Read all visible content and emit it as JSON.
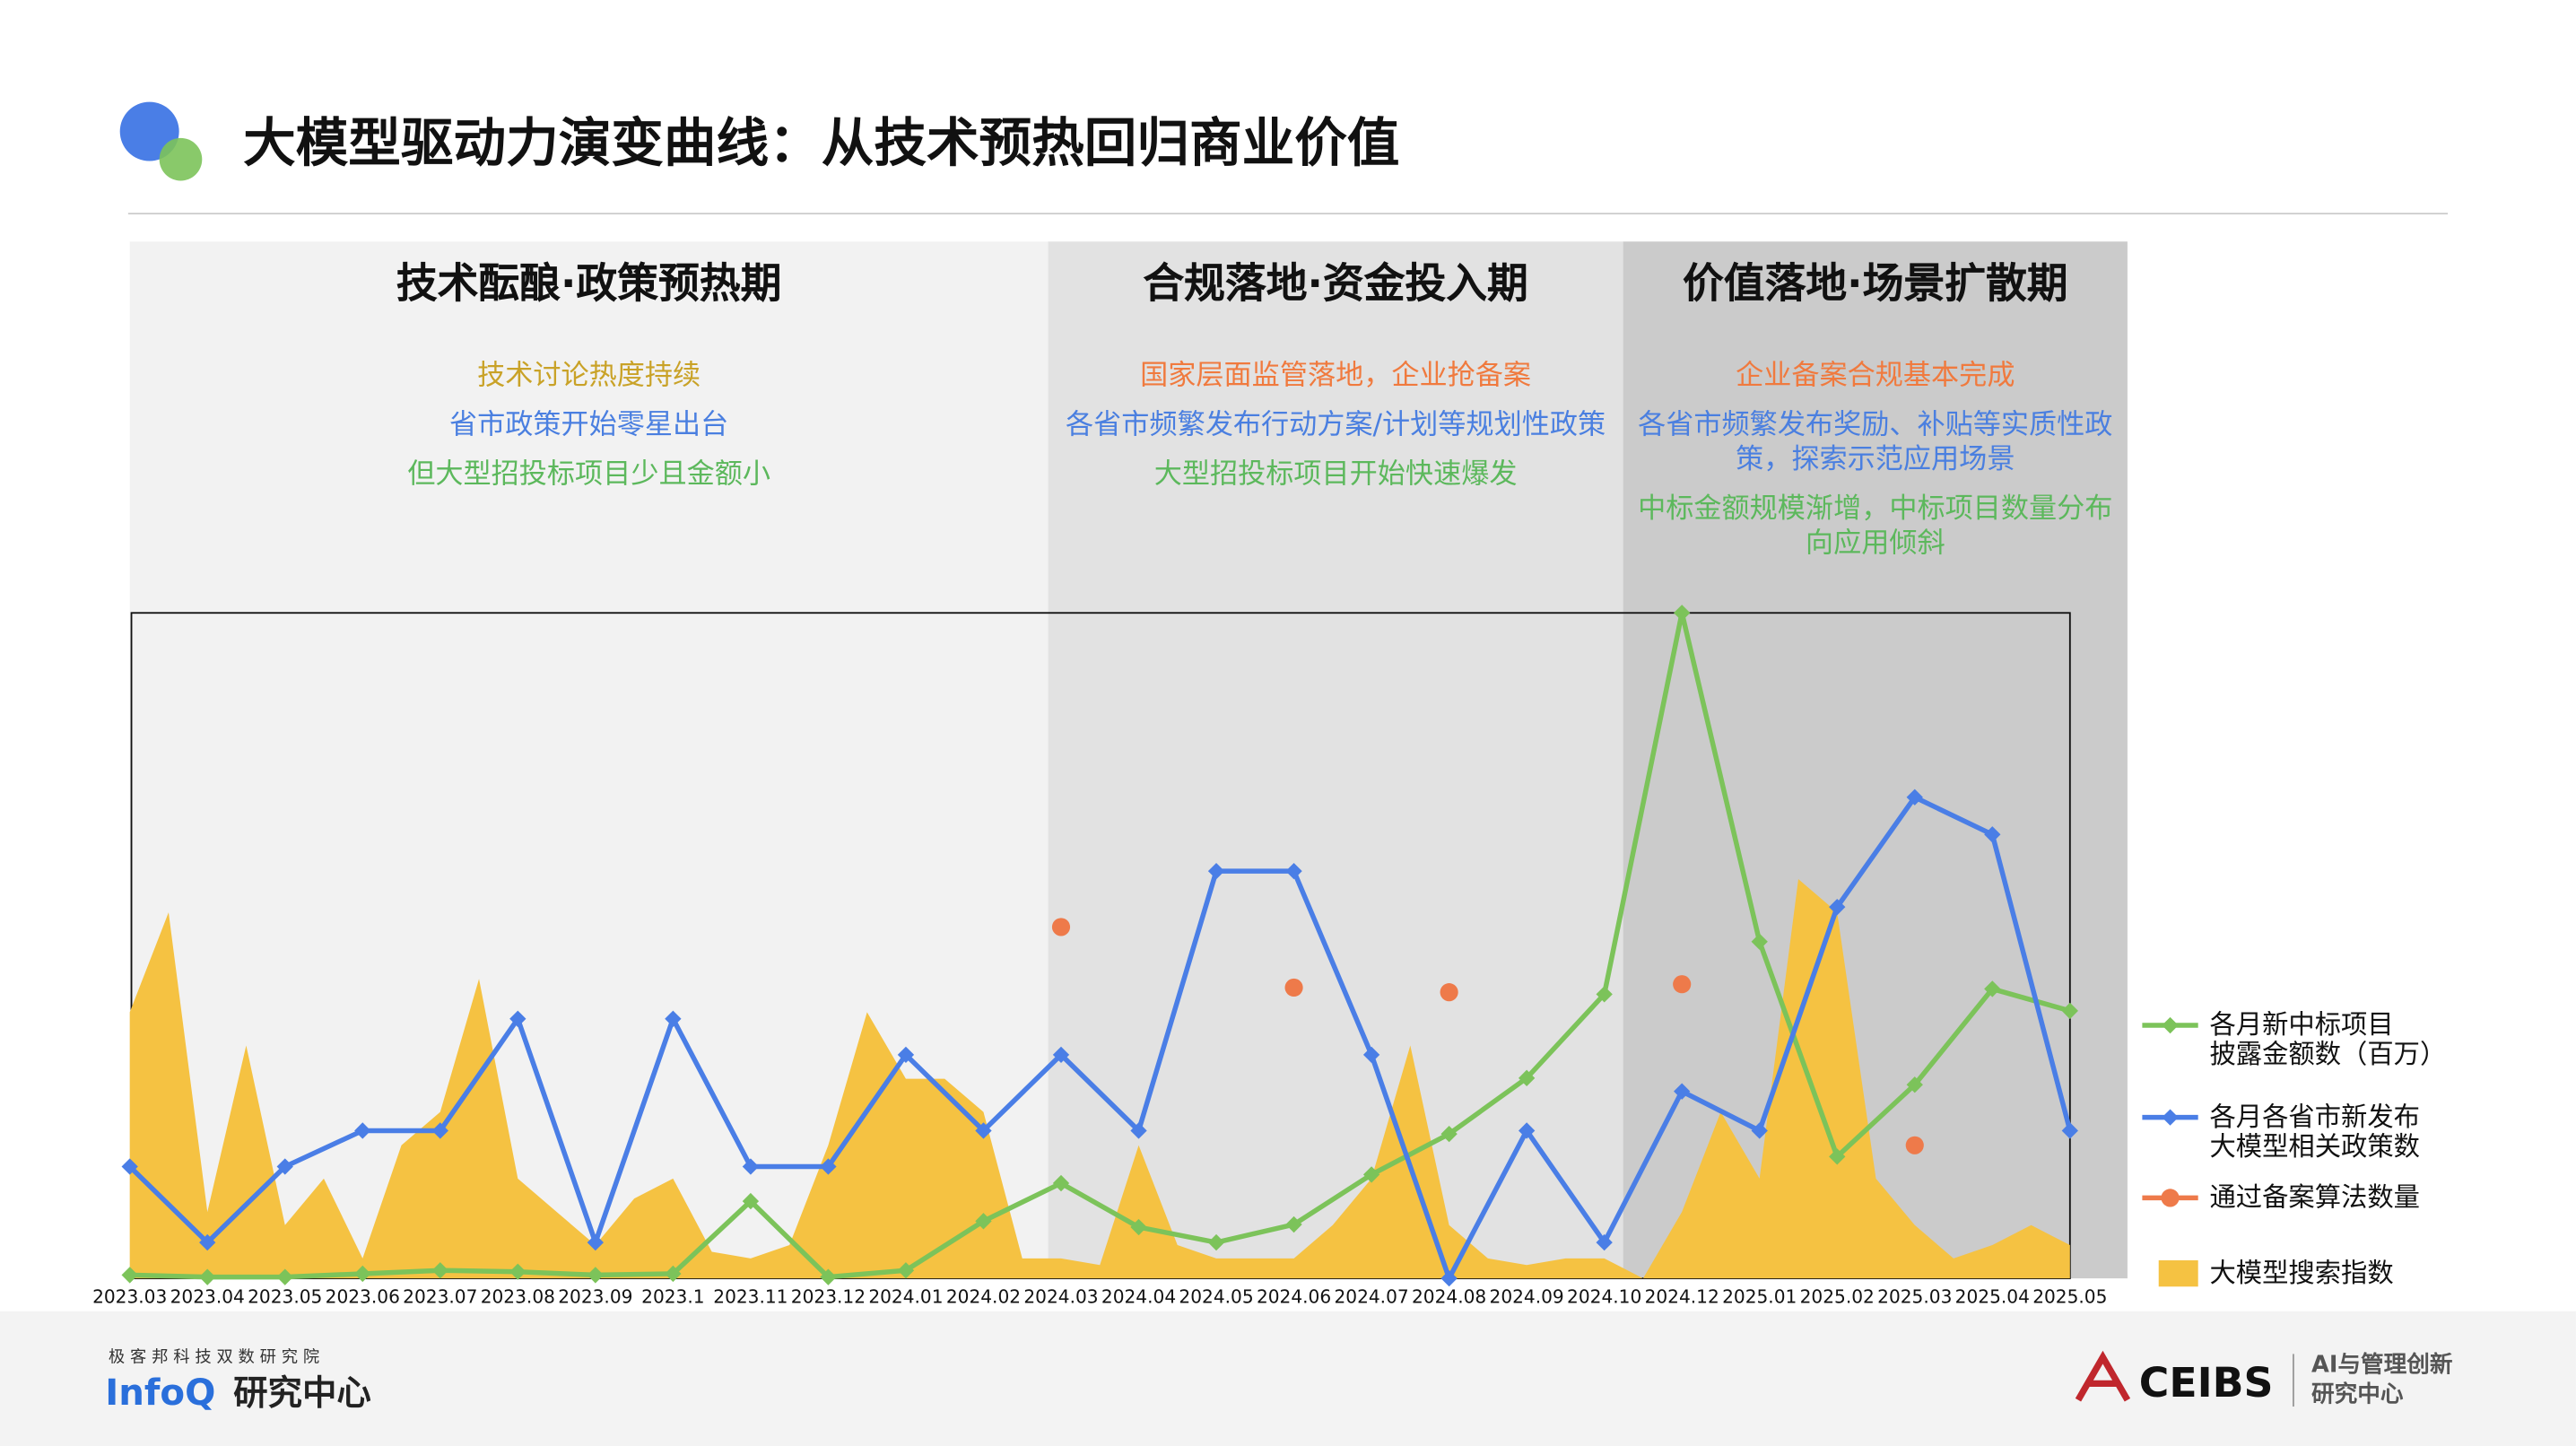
{
  "chart_data": {
    "type": "line",
    "title": "大模型驱动力演变曲线：从技术预热回归商业价值",
    "phases": [
      {
        "name": "技术酝酿·政策预热期",
        "lines": [
          {
            "text": "技术讨论热度持续",
            "color": "#c9a227"
          },
          {
            "text": "省市政策开始零星出台",
            "color": "#4a7fe0"
          },
          {
            "text": "但大型招投标项目少且金额小",
            "color": "#5cb85c"
          }
        ],
        "background": "#f2f2f2"
      },
      {
        "name": "合规落地·资金投入期",
        "lines": [
          {
            "text": "国家层面监管落地，企业抢备案",
            "color": "#f07a3e"
          },
          {
            "text": "各省市频繁发布行动方案/计划等规划性政策",
            "color": "#4a7fe0"
          },
          {
            "text": "大型招投标项目开始快速爆发",
            "color": "#5cb85c"
          }
        ],
        "background": "#e2e2e2"
      },
      {
        "name": "价值落地·场景扩散期",
        "lines": [
          {
            "text": "企业备案合规基本完成",
            "color": "#f07a3e"
          },
          {
            "text": "各省市频繁发布奖励、补贴等实质性政策，探索示范应用场景",
            "color": "#4a7fe0"
          },
          {
            "text": "中标金额规模渐增，中标项目数量分布向应用倾斜",
            "color": "#5cb85c"
          }
        ],
        "background": "#cbcbcb"
      }
    ],
    "categories": [
      "2023.03",
      "2023.04",
      "2023.05",
      "2023.06",
      "2023.07",
      "2023.08",
      "2023.09",
      "2023.1",
      "2023.11",
      "2023.12",
      "2024.01",
      "2024.02",
      "2024.03",
      "2024.04",
      "2024.05",
      "2024.06",
      "2024.07",
      "2024.08",
      "2024.09",
      "2024.10",
      "2024.12",
      "2025.01",
      "2025.02",
      "2025.03",
      "2025.04",
      "2025.05"
    ],
    "ylim": [
      0,
      100
    ],
    "series": [
      {
        "name": "各月新中标项目\n披露金额数（百万）",
        "color": "#7cc35a",
        "marker": "diamond",
        "values": [
          0.5,
          0.2,
          0.2,
          0.7,
          1.2,
          1,
          0.5,
          0.7,
          11.6,
          0.2,
          1.2,
          8.6,
          14.3,
          7.7,
          5.4,
          8.1,
          15.6,
          21.7,
          30.1,
          42.7,
          100,
          50.6,
          18.3,
          29.1,
          43.5,
          40.2
        ]
      },
      {
        "name": "各月各省市新发布\n大模型相关政策数",
        "color": "#4a7ee6",
        "marker": "diamond",
        "values": [
          16.8,
          5.4,
          16.8,
          22.2,
          22.2,
          39,
          5.4,
          39,
          16.8,
          16.8,
          33.6,
          22.2,
          33.6,
          22.2,
          61.2,
          61.2,
          33.6,
          0,
          22.2,
          5.4,
          28.1,
          22.2,
          55.8,
          72.3,
          66.7,
          22.2
        ]
      },
      {
        "name": "通过备案算法数量",
        "color": "#ee7a4a",
        "marker": "circle",
        "values": [
          null,
          null,
          null,
          null,
          null,
          null,
          null,
          null,
          null,
          null,
          null,
          null,
          52.8,
          null,
          null,
          43.7,
          null,
          43,
          null,
          null,
          44.2,
          null,
          null,
          20,
          null,
          null
        ]
      },
      {
        "name": "大模型搜索指数",
        "color": "#f5c242",
        "type": "area",
        "x": [
          0,
          0.5,
          1,
          1.5,
          2,
          2.5,
          3,
          3.5,
          4,
          4.5,
          5,
          5.5,
          6,
          6.5,
          7,
          7.5,
          8,
          8.5,
          9,
          9.5,
          10,
          10.5,
          11,
          11.5,
          12,
          12.5,
          13,
          13.5,
          14,
          14.5,
          15,
          15.5,
          16,
          16.5,
          17,
          17.5,
          18,
          18.5,
          19,
          19.5,
          20,
          20.5,
          21,
          21.5,
          22,
          22.5,
          23,
          23.5,
          24,
          24.5,
          25
        ],
        "values": [
          40,
          55,
          10,
          35,
          8,
          15,
          3,
          20,
          25,
          45,
          15,
          10,
          5,
          12,
          15,
          4,
          3,
          5,
          20,
          40,
          30,
          30,
          25,
          3,
          3,
          2,
          20,
          5,
          3,
          3,
          3,
          8,
          15,
          35,
          8,
          3,
          2,
          3,
          3,
          0,
          10,
          25,
          15,
          60,
          55,
          15,
          8,
          3,
          5,
          8,
          5
        ]
      }
    ]
  },
  "footer": {
    "left_small": "极 客 邦 科 技 双 数 研 究 院",
    "left_brand": "InfoQ",
    "left_brand2": "研究中心",
    "right_brand": "CEIBS",
    "right_lines": [
      "AI与管理创新",
      "研究中心"
    ]
  }
}
